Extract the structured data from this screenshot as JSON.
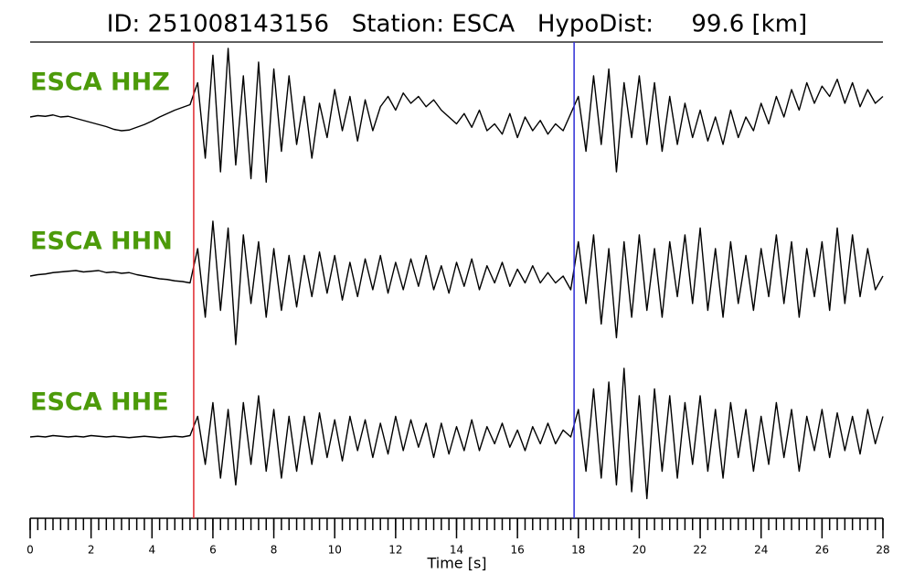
{
  "chart_data": {
    "type": "line",
    "title": "ID: 251008143156   Station: ESCA   HypoDist:     99.6 [km]",
    "xlabel": "Time [s]",
    "xlim": [
      0,
      28
    ],
    "xticks": [
      0,
      2,
      4,
      6,
      8,
      10,
      12,
      14,
      16,
      18,
      20,
      22,
      24,
      26,
      28
    ],
    "xminorticks": [
      0,
      0.25,
      0.5,
      0.75,
      1,
      1.25,
      1.5,
      1.75,
      2,
      2.25,
      2.5,
      2.75,
      3,
      3.25,
      3.5,
      3.75,
      4,
      4.25,
      4.5,
      4.75,
      5,
      5.25,
      5.5,
      5.75,
      6,
      6.25,
      6.5,
      6.75,
      7,
      7.25,
      7.5,
      7.75,
      8,
      8.25,
      8.5,
      8.75,
      9,
      9.25,
      9.5,
      9.75,
      10,
      10.25,
      10.5,
      10.75,
      11,
      11.25,
      11.5,
      11.75,
      12,
      12.25,
      12.5,
      12.75,
      13,
      13.25,
      13.5,
      13.75,
      14,
      14.25,
      14.5,
      14.75,
      15,
      15.25,
      15.5,
      15.75,
      16,
      16.25,
      16.5,
      16.75,
      17,
      17.25,
      17.5,
      17.75,
      18,
      18.25,
      18.5,
      18.75,
      19,
      19.25,
      19.5,
      19.75,
      20,
      20.25,
      20.5,
      20.75,
      21,
      21.25,
      21.5,
      21.75,
      22,
      22.25,
      22.5,
      22.75,
      23,
      23.25,
      23.5,
      23.75,
      24,
      24.25,
      24.5,
      24.75,
      25,
      25.25,
      25.5,
      25.75,
      26,
      26.25,
      26.5,
      26.75,
      27,
      27.25,
      27.5,
      27.75,
      28
    ],
    "ylim": [
      -1,
      1
    ],
    "label_color": "#4c9a0a",
    "markers": [
      {
        "time": 5.37,
        "color": "#e0282e"
      },
      {
        "time": 17.86,
        "color": "#2d2dd6"
      }
    ],
    "x": [
      0,
      0.25,
      0.5,
      0.75,
      1,
      1.25,
      1.5,
      1.75,
      2,
      2.25,
      2.5,
      2.75,
      3,
      3.25,
      3.5,
      3.75,
      4,
      4.25,
      4.5,
      4.75,
      5,
      5.25,
      5.5,
      5.75,
      6,
      6.25,
      6.5,
      6.75,
      7,
      7.25,
      7.5,
      7.75,
      8,
      8.25,
      8.5,
      8.75,
      9,
      9.25,
      9.5,
      9.75,
      10,
      10.25,
      10.5,
      10.75,
      11,
      11.25,
      11.5,
      11.75,
      12,
      12.25,
      12.5,
      12.75,
      13,
      13.25,
      13.5,
      13.75,
      14,
      14.25,
      14.5,
      14.75,
      15,
      15.25,
      15.5,
      15.75,
      16,
      16.25,
      16.5,
      16.75,
      17,
      17.25,
      17.5,
      17.75,
      18,
      18.25,
      18.5,
      18.75,
      19,
      19.25,
      19.5,
      19.75,
      20,
      20.25,
      20.5,
      20.75,
      21,
      21.25,
      21.5,
      21.75,
      22,
      22.25,
      22.5,
      22.75,
      23,
      23.25,
      23.5,
      23.75,
      24,
      24.25,
      24.5,
      24.75,
      25,
      25.25,
      25.5,
      25.75,
      26,
      26.25,
      26.5,
      26.75,
      27,
      27.25,
      27.5,
      27.75,
      28
    ],
    "series": [
      {
        "name": "ESCA HHZ",
        "color": "#000000",
        "values": [
          0.0,
          0.02,
          0.01,
          0.03,
          0.0,
          0.01,
          -0.02,
          -0.05,
          -0.08,
          -0.11,
          -0.14,
          -0.18,
          -0.2,
          -0.19,
          -0.15,
          -0.11,
          -0.06,
          0.0,
          0.05,
          0.1,
          0.14,
          0.18,
          0.5,
          -0.6,
          0.9,
          -0.8,
          1.0,
          -0.7,
          0.6,
          -0.9,
          0.8,
          -0.95,
          0.7,
          -0.5,
          0.6,
          -0.4,
          0.3,
          -0.6,
          0.2,
          -0.3,
          0.4,
          -0.2,
          0.3,
          -0.35,
          0.25,
          -0.2,
          0.15,
          0.3,
          0.1,
          0.35,
          0.2,
          0.3,
          0.15,
          0.25,
          0.1,
          0.0,
          -0.1,
          0.05,
          -0.15,
          0.1,
          -0.2,
          -0.1,
          -0.25,
          0.05,
          -0.3,
          0.0,
          -0.2,
          -0.05,
          -0.25,
          -0.1,
          -0.2,
          0.05,
          0.3,
          -0.5,
          0.6,
          -0.4,
          0.7,
          -0.8,
          0.5,
          -0.3,
          0.6,
          -0.4,
          0.5,
          -0.5,
          0.3,
          -0.4,
          0.2,
          -0.3,
          0.1,
          -0.35,
          0.0,
          -0.4,
          0.1,
          -0.3,
          0.0,
          -0.2,
          0.2,
          -0.1,
          0.3,
          0.0,
          0.4,
          0.1,
          0.5,
          0.2,
          0.45,
          0.3,
          0.55,
          0.2,
          0.5,
          0.15,
          0.4,
          0.2,
          0.3
        ]
      },
      {
        "name": "ESCA HHN",
        "color": "#000000",
        "values": [
          0.0,
          0.02,
          0.03,
          0.05,
          0.06,
          0.07,
          0.08,
          0.06,
          0.07,
          0.08,
          0.05,
          0.06,
          0.04,
          0.05,
          0.02,
          0.0,
          -0.02,
          -0.04,
          -0.05,
          -0.07,
          -0.08,
          -0.1,
          0.4,
          -0.6,
          0.8,
          -0.5,
          0.7,
          -1.0,
          0.6,
          -0.4,
          0.5,
          -0.6,
          0.4,
          -0.5,
          0.3,
          -0.45,
          0.3,
          -0.3,
          0.35,
          -0.25,
          0.3,
          -0.35,
          0.2,
          -0.3,
          0.25,
          -0.2,
          0.3,
          -0.25,
          0.2,
          -0.2,
          0.25,
          -0.15,
          0.3,
          -0.2,
          0.15,
          -0.25,
          0.2,
          -0.15,
          0.25,
          -0.2,
          0.15,
          -0.1,
          0.2,
          -0.15,
          0.1,
          -0.1,
          0.15,
          -0.1,
          0.05,
          -0.1,
          0.0,
          -0.2,
          0.5,
          -0.4,
          0.6,
          -0.7,
          0.4,
          -0.9,
          0.5,
          -0.6,
          0.6,
          -0.5,
          0.4,
          -0.6,
          0.5,
          -0.3,
          0.6,
          -0.4,
          0.7,
          -0.5,
          0.4,
          -0.6,
          0.5,
          -0.4,
          0.3,
          -0.5,
          0.4,
          -0.3,
          0.6,
          -0.4,
          0.5,
          -0.6,
          0.4,
          -0.3,
          0.5,
          -0.5,
          0.7,
          -0.4,
          0.6,
          -0.3,
          0.4,
          -0.2,
          0.0
        ]
      },
      {
        "name": "ESCA HHE",
        "color": "#000000",
        "values": [
          0.0,
          0.01,
          0.0,
          0.02,
          0.01,
          0.0,
          0.01,
          0.0,
          0.02,
          0.01,
          0.0,
          0.01,
          0.0,
          -0.01,
          0.0,
          0.01,
          0.0,
          -0.01,
          0.0,
          0.01,
          0.0,
          0.02,
          0.3,
          -0.4,
          0.5,
          -0.6,
          0.4,
          -0.7,
          0.5,
          -0.4,
          0.6,
          -0.5,
          0.4,
          -0.6,
          0.3,
          -0.5,
          0.3,
          -0.4,
          0.35,
          -0.3,
          0.25,
          -0.35,
          0.3,
          -0.2,
          0.25,
          -0.3,
          0.2,
          -0.25,
          0.3,
          -0.2,
          0.25,
          -0.15,
          0.2,
          -0.3,
          0.2,
          -0.25,
          0.15,
          -0.2,
          0.25,
          -0.2,
          0.15,
          -0.1,
          0.2,
          -0.15,
          0.1,
          -0.2,
          0.15,
          -0.1,
          0.2,
          -0.1,
          0.1,
          0.0,
          0.4,
          -0.5,
          0.7,
          -0.6,
          0.8,
          -0.7,
          1.0,
          -0.8,
          0.6,
          -0.9,
          0.7,
          -0.5,
          0.6,
          -0.6,
          0.5,
          -0.4,
          0.6,
          -0.5,
          0.4,
          -0.6,
          0.5,
          -0.3,
          0.4,
          -0.5,
          0.3,
          -0.4,
          0.5,
          -0.3,
          0.4,
          -0.5,
          0.3,
          -0.2,
          0.4,
          -0.3,
          0.35,
          -0.2,
          0.3,
          -0.25,
          0.4,
          -0.1,
          0.3
        ]
      }
    ]
  }
}
